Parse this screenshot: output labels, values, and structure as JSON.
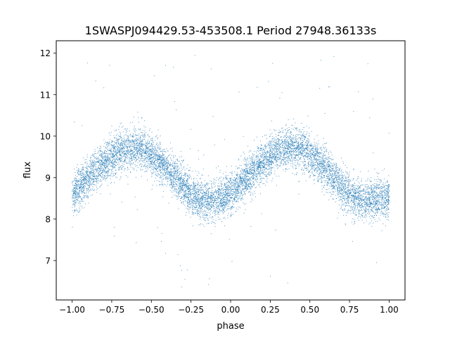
{
  "chart_data": {
    "type": "scatter",
    "title": "1SWASPJ094429.53-453508.1 Period 27948.36133s",
    "xlabel": "phase",
    "ylabel": "flux",
    "xlim": [
      -1.1,
      1.1
    ],
    "ylim": [
      6.05,
      12.3
    ],
    "xticks": [
      -1.0,
      -0.75,
      -0.5,
      -0.25,
      0.0,
      0.25,
      0.5,
      0.75,
      1.0
    ],
    "xtick_labels": [
      "−1.00",
      "−0.75",
      "−0.50",
      "−0.25",
      "0.00",
      "0.25",
      "0.50",
      "0.75",
      "1.00"
    ],
    "yticks": [
      7,
      8,
      9,
      10,
      11,
      12
    ],
    "ytick_labels": [
      "7",
      "8",
      "9",
      "10",
      "11",
      "12"
    ],
    "grid": false,
    "legend": "none",
    "marker_color": "#1f77b4",
    "description_of_series": "phase-folded light curve, roughly sinusoidal: flux ~ 9.1 + 0.62*sin(2*pi*(phase+0.9)) with scatter ~0.25, plus sparse outliers between 6.3 and 12",
    "series": [
      {
        "name": "",
        "x": [
          -1.0,
          -0.95,
          -0.9,
          -0.85,
          -0.8,
          -0.75,
          -0.7,
          -0.65,
          -0.6,
          -0.55,
          -0.5,
          -0.45,
          -0.4,
          -0.35,
          -0.3,
          -0.25,
          -0.2,
          -0.15,
          -0.1,
          -0.05,
          0.0,
          0.05,
          0.1,
          0.15,
          0.2,
          0.25,
          0.3,
          0.35,
          0.4,
          0.45,
          0.5,
          0.55,
          0.6,
          0.65,
          0.7,
          0.75,
          0.8,
          0.85,
          0.9,
          0.95,
          1.0
        ],
        "y": [
          8.55,
          8.8,
          9.0,
          9.2,
          9.35,
          9.5,
          9.62,
          9.7,
          9.72,
          9.68,
          9.55,
          9.4,
          9.2,
          9.0,
          8.8,
          8.6,
          8.5,
          8.45,
          8.45,
          8.5,
          8.6,
          8.8,
          9.0,
          9.2,
          9.35,
          9.5,
          9.62,
          9.7,
          9.72,
          9.68,
          9.55,
          9.4,
          9.2,
          9.0,
          8.8,
          8.6,
          8.5,
          8.45,
          8.45,
          8.5,
          8.55
        ]
      }
    ]
  }
}
